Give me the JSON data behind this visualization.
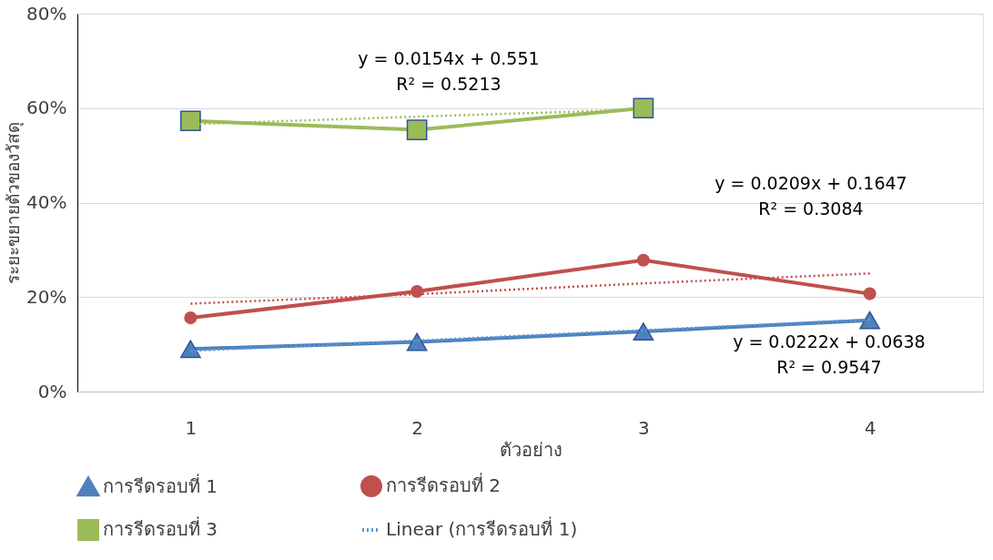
{
  "chart_data": {
    "type": "line",
    "xlabel": "ตัวอย่าง",
    "ylabel": "ระยะขยายตัวของวัสดุ",
    "xlim": [
      0.5,
      4.5
    ],
    "xticks": [
      1,
      2,
      3,
      4
    ],
    "ylim": [
      0,
      80
    ],
    "yticks": [
      {
        "value": 0,
        "label": "0%"
      },
      {
        "value": 20,
        "label": "20%"
      },
      {
        "value": 40,
        "label": "40%"
      },
      {
        "value": 60,
        "label": "60%"
      },
      {
        "value": 80,
        "label": "80%"
      }
    ],
    "grid": "y",
    "legend": "bottom",
    "series": [
      {
        "name": "การรีดรอบที่ 1",
        "color": "#4f81bd",
        "marker": "triangle",
        "line_style": "solid",
        "x": [
          1,
          2,
          3,
          4
        ],
        "values": [
          9.0,
          10.5,
          12.7,
          15.1
        ]
      },
      {
        "name": "การรีดรอบที่ 2",
        "color": "#c0504d",
        "marker": "circle",
        "line_style": "solid",
        "x": [
          1,
          2,
          3,
          4
        ],
        "values": [
          15.6,
          21.2,
          27.8,
          20.7
        ]
      },
      {
        "name": "การรีดรอบที่ 3",
        "color": "#9bbb59",
        "marker": "square",
        "line_style": "solid",
        "x": [
          1,
          2,
          3
        ],
        "values": [
          57.3,
          55.4,
          60.0
        ]
      },
      {
        "name": "Linear (การรีดรอบที่ 1)",
        "color": "#5b9bd5",
        "marker": "none",
        "line_style": "dotted",
        "x": [
          1,
          2,
          3,
          4
        ],
        "values": [
          8.6,
          10.8,
          13.0,
          15.2
        ]
      },
      {
        "color": "#c0504d",
        "marker": "none",
        "line_style": "dotted",
        "x": [
          1,
          2,
          3,
          4
        ],
        "values": [
          18.6,
          20.6,
          22.9,
          25.0
        ]
      },
      {
        "color": "#9bbb59",
        "marker": "none",
        "line_style": "dotted",
        "x": [
          1,
          2,
          3
        ],
        "values": [
          56.6,
          58.2,
          59.7
        ]
      }
    ],
    "annotations": [
      "y = 0.0154x + 0.551\nR² = 0.5213",
      "y = 0.0209x + 0.1647\nR² = 0.3084",
      "y = 0.0222x + 0.0638\nR² = 0.9547"
    ]
  }
}
